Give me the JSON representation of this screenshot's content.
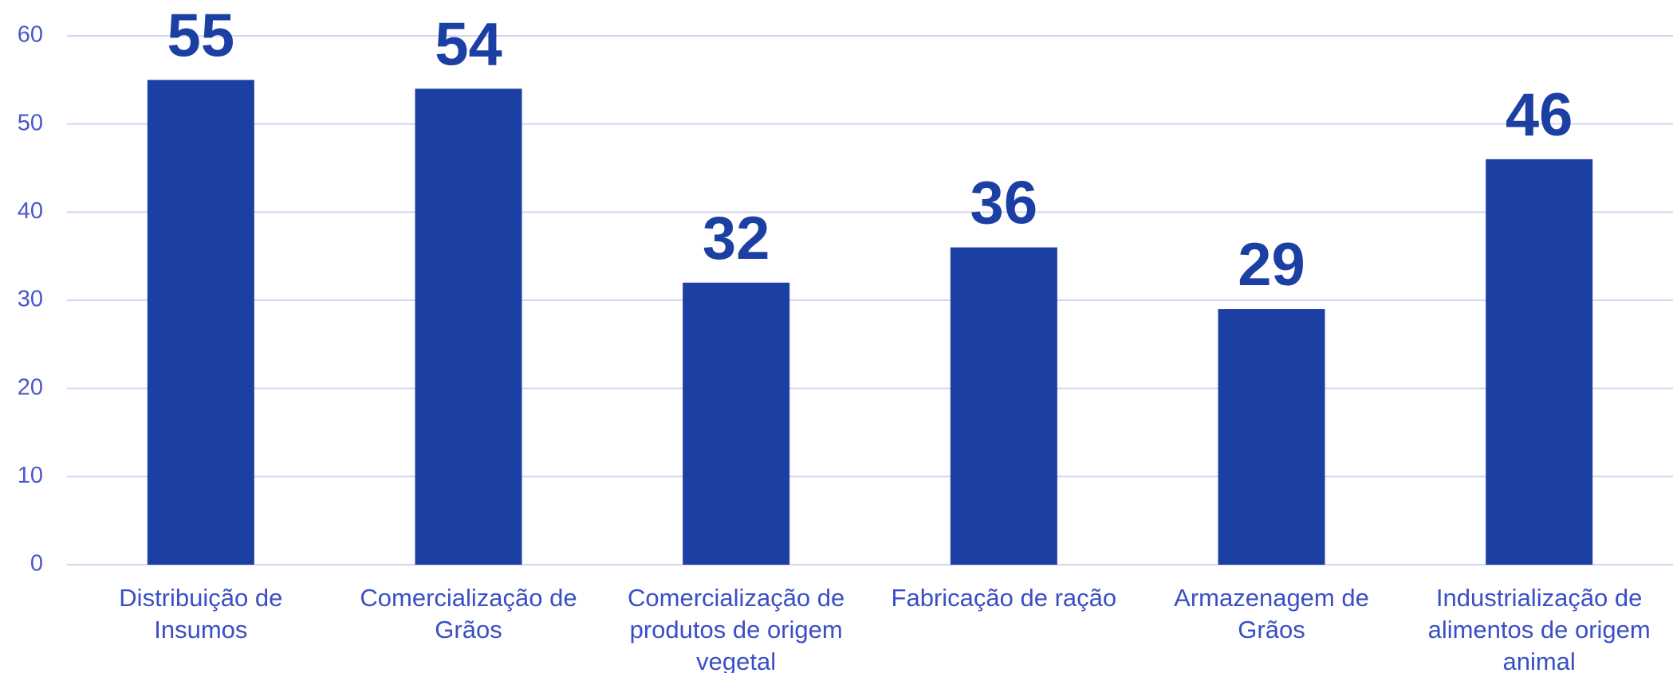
{
  "chart_data": {
    "type": "bar",
    "categories": [
      "Distribuição de Insumos",
      "Comercialização de Grãos",
      "Comercialização de produtos de origem vegetal",
      "Fabricação de ração",
      "Armazenagem de Grãos",
      "Industrialização de alimentos de origem animal"
    ],
    "values": [
      55,
      54,
      32,
      36,
      29,
      46
    ],
    "color": "#1c3fa3",
    "ylim": [
      0,
      60
    ],
    "yticks": [
      0,
      10,
      20,
      30,
      40,
      50,
      60
    ],
    "grid": true
  }
}
